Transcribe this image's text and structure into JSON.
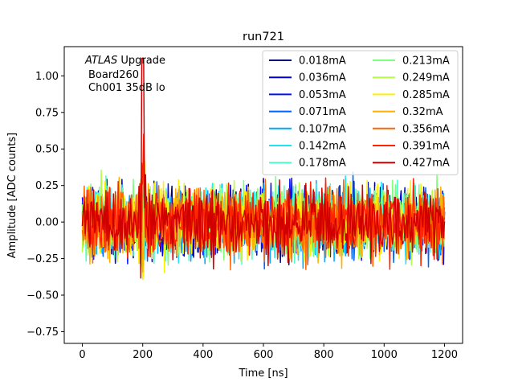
{
  "chart_data": {
    "type": "line",
    "title": "run721",
    "xlabel": "Time [ns]",
    "ylabel": "Amplitude [ADC counts]",
    "xlim": [
      -60,
      1260
    ],
    "ylim": [
      -0.83,
      1.2
    ],
    "xticks": [
      0,
      200,
      400,
      600,
      800,
      1000,
      1200
    ],
    "yticks": [
      -0.75,
      -0.5,
      -0.25,
      0.0,
      0.25,
      0.5,
      0.75,
      1.0
    ],
    "xtick_labels": [
      "0",
      "200",
      "400",
      "600",
      "800",
      "1000",
      "1200"
    ],
    "ytick_labels": [
      "−0.75",
      "−0.50",
      "−0.25",
      "0.00",
      "0.25",
      "0.50",
      "0.75",
      "1.00"
    ],
    "annotation": {
      "line1_italic": "ATLAS",
      "line1_rest": " Upgrade",
      "line2": "Board260",
      "line3": "Ch001 35dB lo"
    },
    "legend_position": "top-right",
    "legend_columns": 2,
    "x_range": [
      0,
      1200
    ],
    "sample_step_ns": 3.125,
    "noise_note": "approx. zero-mean noise, amplitude roughly ±0.5, peak near t=200ns",
    "peak": {
      "x": 200,
      "y": 1.12
    },
    "series": [
      {
        "name": "0.018mA",
        "color": "#00007f",
        "amplitude": 0.3
      },
      {
        "name": "0.036mA",
        "color": "#0000d0",
        "amplitude": 0.32
      },
      {
        "name": "0.053mA",
        "color": "#0010ff",
        "amplitude": 0.33
      },
      {
        "name": "0.071mA",
        "color": "#0064ff",
        "amplitude": 0.34
      },
      {
        "name": "0.107mA",
        "color": "#00a8ff",
        "amplitude": 0.34
      },
      {
        "name": "0.142mA",
        "color": "#1de5f0",
        "amplitude": 0.33
      },
      {
        "name": "0.178mA",
        "color": "#4dffc8",
        "amplitude": 0.33
      },
      {
        "name": "0.213mA",
        "color": "#7dff7a",
        "amplitude": 0.33
      },
      {
        "name": "0.249mA",
        "color": "#b4ff43",
        "amplitude": 0.33
      },
      {
        "name": "0.285mA",
        "color": "#fff000",
        "amplitude": 0.34
      },
      {
        "name": "0.32mA",
        "color": "#ffb000",
        "amplitude": 0.33
      },
      {
        "name": "0.356mA",
        "color": "#ff6800",
        "amplitude": 0.33
      },
      {
        "name": "0.391mA",
        "color": "#ff2400",
        "amplitude": 0.33
      },
      {
        "name": "0.427mA",
        "color": "#d00000",
        "amplitude": 0.31
      }
    ]
  }
}
